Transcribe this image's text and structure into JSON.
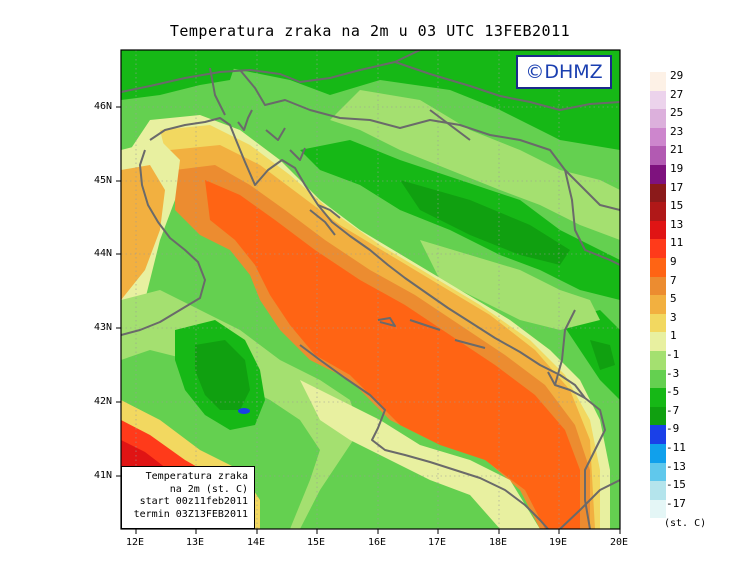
{
  "title": "Temperatura zraka na 2m u 03 UTC 13FEB2011",
  "logo": "©DHMZ",
  "info_box": {
    "line1": "Temperatura zraka",
    "line2": "na 2m (st. C)",
    "line3": "start 00z11feb2011",
    "line4": "termin 03Z13FEB2011"
  },
  "lat_labels": [
    "46N",
    "45N",
    "44N",
    "43N",
    "42N",
    "41N"
  ],
  "lon_labels": [
    "12E",
    "13E",
    "14E",
    "15E",
    "16E",
    "17E",
    "18E",
    "19E",
    "20E"
  ],
  "legend": {
    "labels": [
      "29",
      "27",
      "25",
      "23",
      "21",
      "19",
      "17",
      "15",
      "13",
      "11",
      "9",
      "7",
      "5",
      "3",
      "1",
      "-1",
      "-3",
      "-5",
      "-7",
      "-9",
      "-11",
      "-13",
      "-15",
      "-17"
    ],
    "colors": [
      "#fdf1e6",
      "#ecd3ec",
      "#dcb0dc",
      "#cd86cd",
      "#b25ab2",
      "#7e127e",
      "#8b1a1a",
      "#b01818",
      "#e01414",
      "#ff3a1a",
      "#ff6414",
      "#ec8c30",
      "#f2b040",
      "#f2d860",
      "#e8f0a0",
      "#a4e070",
      "#64d050",
      "#16b816",
      "#10a010",
      "#1a40e8",
      "#10a0ec",
      "#60c8ec",
      "#b4e4ec",
      "#e4f6f6"
    ],
    "unit": "(st. C)"
  },
  "colors": {
    "coast_border": "#6a6a6a",
    "frame": "#000000",
    "logo_text": "#1a3fb0"
  }
}
